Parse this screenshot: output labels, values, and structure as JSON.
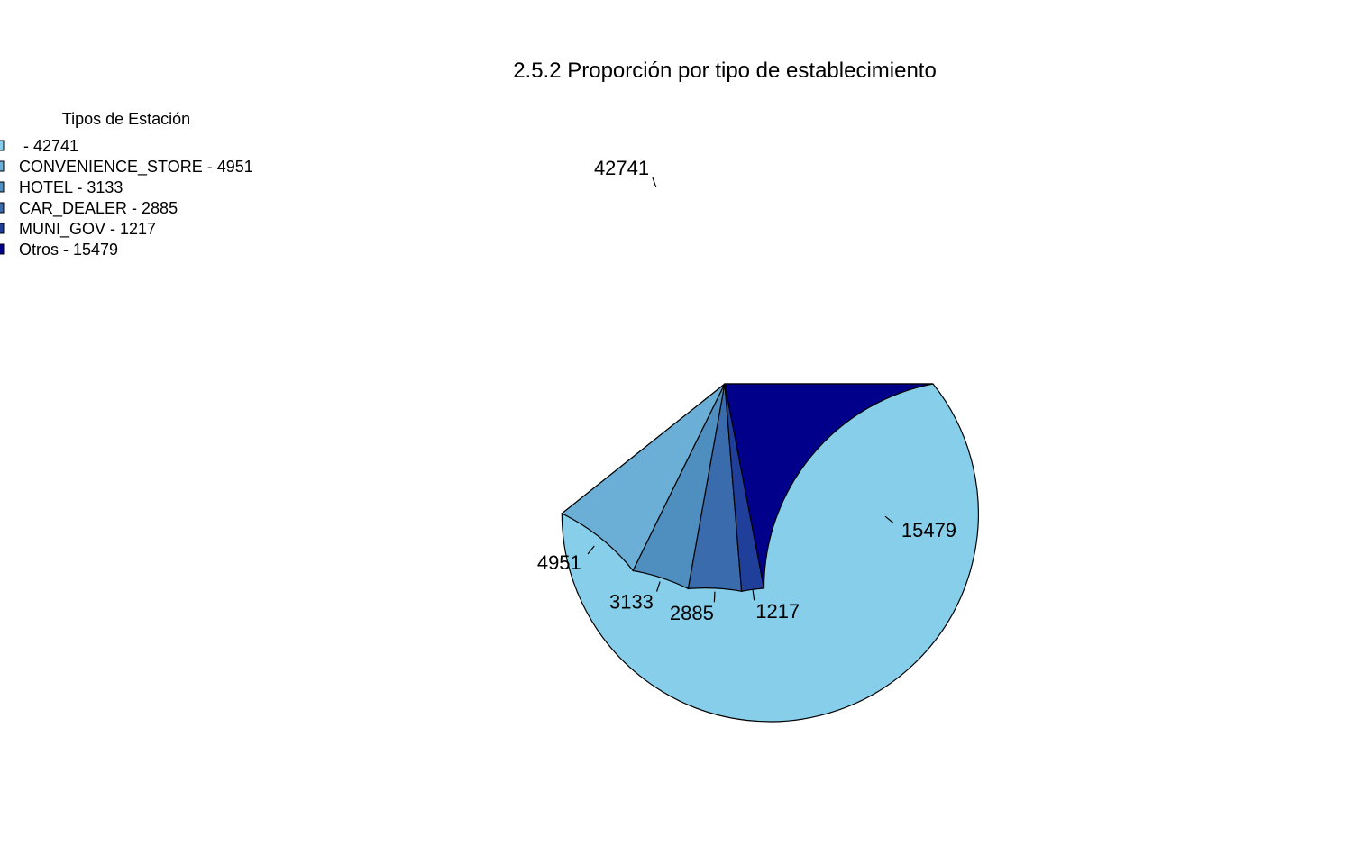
{
  "chart_data": {
    "type": "pie",
    "title": "2.5.2 Proporción por tipo de establecimiento",
    "legend": {
      "title": "Tipos de Estación",
      "placement": "top-left",
      "entries": [
        " - 42741",
        "CONVENIENCE_STORE - 4951",
        "HOTEL - 3133",
        "CAR_DEALER - 2885",
        "MUNI_GOV - 1217",
        "Otros - 15479"
      ]
    },
    "slices": [
      {
        "label": "",
        "value": 42741,
        "text": "42741",
        "color": "#87CEEB"
      },
      {
        "label": "CONVENIENCE_STORE",
        "value": 4951,
        "text": "4951",
        "color": "#6BAED6"
      },
      {
        "label": "HOTEL",
        "value": 3133,
        "text": "3133",
        "color": "#4F8FC0"
      },
      {
        "label": "CAR_DEALER",
        "value": 2885,
        "text": "2885",
        "color": "#3A6BAD"
      },
      {
        "label": "MUNI_GOV",
        "value": 1217,
        "text": "1217",
        "color": "#1F3F9A"
      },
      {
        "label": "Otros",
        "value": 15479,
        "text": "15479",
        "color": "#00008B"
      }
    ]
  }
}
